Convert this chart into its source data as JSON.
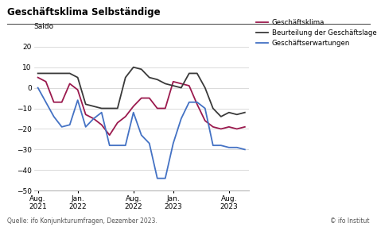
{
  "title": "Geschäftsklima Selbständige",
  "ylabel": "Saldo",
  "source": "Quelle: ifo Konjunkturumfragen, Dezember 2023.",
  "copyright": "© ifo Institut",
  "ylim": [
    -50,
    25
  ],
  "yticks": [
    -50,
    -40,
    -30,
    -20,
    -10,
    0,
    10,
    20
  ],
  "legend_labels": [
    "Geschäftsklima",
    "Beurteilung der Geschäftslage",
    "Geschäftserwartungen"
  ],
  "colors": {
    "klima": "#9b1a4e",
    "lage": "#3a3a3a",
    "erwartungen": "#4472c4"
  },
  "x_tick_labels": [
    "Aug.\n2021",
    "Jan.\n2022",
    "Aug.\n2022",
    "Jan.\n2023",
    "Aug.\n2023"
  ],
  "x_tick_positions": [
    0,
    5,
    12,
    17,
    24
  ],
  "klima": [
    5,
    3,
    -7,
    -7,
    2,
    -1,
    -13,
    -15,
    -18,
    -23,
    -17,
    -14,
    -9,
    -5,
    -5,
    -10,
    -10,
    3,
    2,
    1,
    -8,
    -16,
    -19,
    -20,
    -19,
    -20,
    -19
  ],
  "lage": [
    7,
    7,
    7,
    7,
    7,
    5,
    -8,
    -9,
    -10,
    -10,
    -10,
    5,
    10,
    9,
    5,
    4,
    2,
    1,
    0,
    7,
    7,
    0,
    -10,
    -14,
    -12,
    -13,
    -12
  ],
  "erwartungen": [
    0,
    -7,
    -14,
    -19,
    -18,
    -6,
    -19,
    -15,
    -12,
    -28,
    -28,
    -28,
    -12,
    -23,
    -27,
    -44,
    -44,
    -27,
    -15,
    -7,
    -7,
    -10,
    -28,
    -28,
    -29,
    -29,
    -30
  ]
}
